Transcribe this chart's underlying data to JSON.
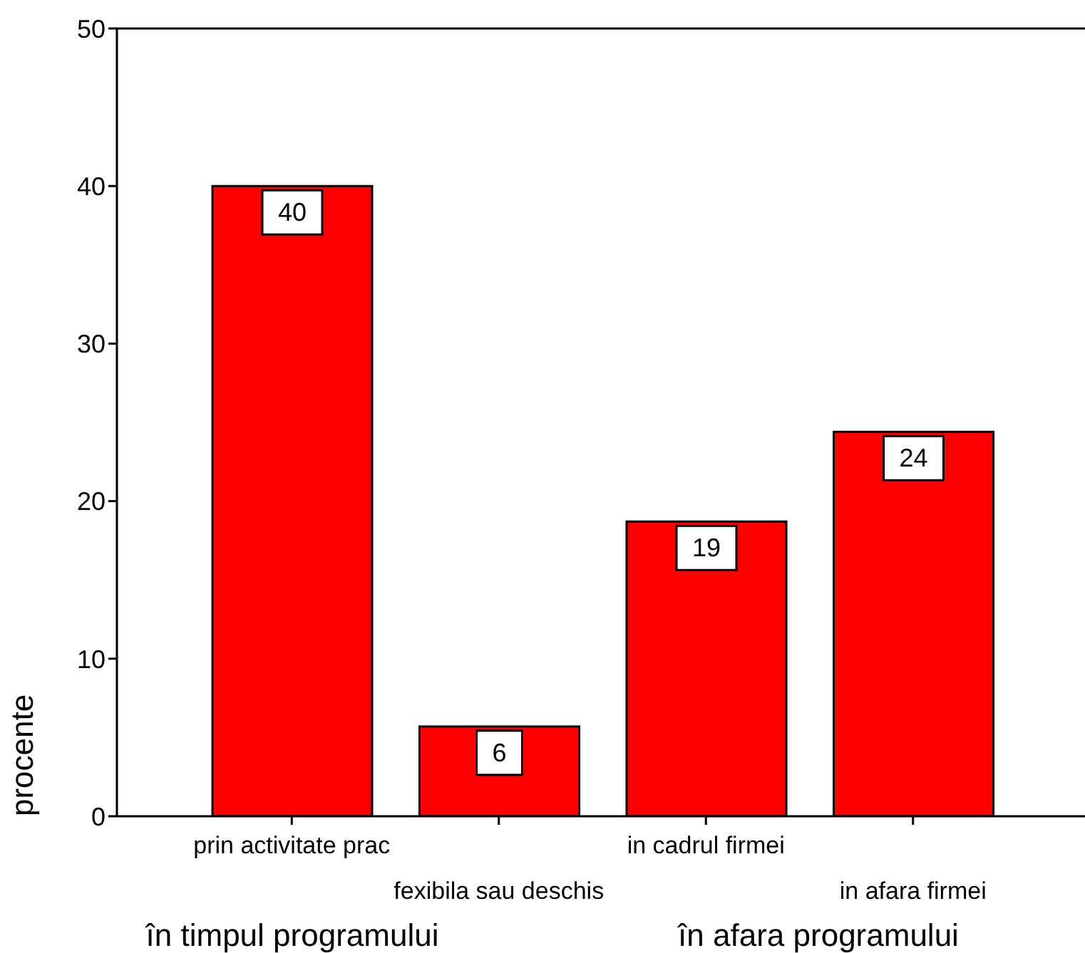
{
  "chart_data": {
    "type": "bar",
    "categories": [
      "prin activitate prac",
      "fexibila sau deschis",
      "in cadrul firmei",
      "in afara firmei"
    ],
    "values": [
      40,
      5.7,
      18.7,
      24.4
    ],
    "color": "#ff0000",
    "value_labels": [
      "40",
      "6",
      "19",
      "24"
    ],
    "ylabel": "procente",
    "ylim": [
      0,
      50
    ],
    "yticks": [
      0,
      10,
      20,
      30,
      40,
      50
    ],
    "annotations": [
      "în timpul programului",
      "în afara programului"
    ]
  }
}
